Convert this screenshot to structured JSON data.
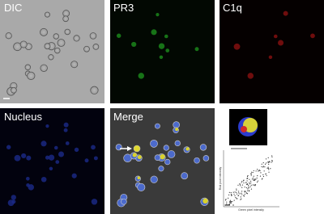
{
  "panels": [
    {
      "label": "DIC"
    },
    {
      "label": "PR3"
    },
    {
      "label": "C1q"
    },
    {
      "label": "Nucleus"
    },
    {
      "label": "Merge"
    }
  ],
  "scatter": {
    "x_label": "Green pixel intensity",
    "y_label": "Red pixel intensity"
  }
}
